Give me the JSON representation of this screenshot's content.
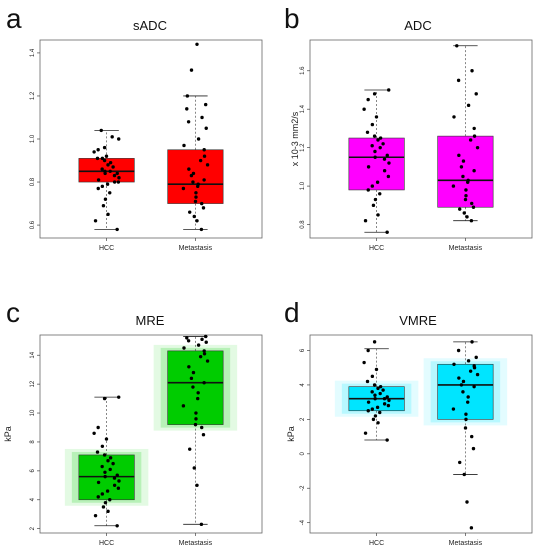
{
  "chart_data": [
    {
      "panel": "a",
      "type": "box",
      "title": "sADC",
      "ylabel": "",
      "categories": [
        "HCC",
        "Metastasis"
      ],
      "ylim": [
        0.54,
        1.46
      ],
      "yticks": [
        0.6,
        0.8,
        1.0,
        1.2,
        1.4
      ],
      "ytick_labels": [
        "0.6",
        "0.8",
        "1.0",
        "1.2",
        "1.4"
      ],
      "box_color": "#ff0000",
      "glow": false,
      "boxes": [
        {
          "name": "HCC",
          "min": 0.58,
          "q1": 0.8,
          "median": 0.85,
          "q3": 0.91,
          "max": 1.04,
          "points": [
            0.58,
            0.62,
            0.65,
            0.69,
            0.72,
            0.75,
            0.77,
            0.78,
            0.79,
            0.8,
            0.8,
            0.81,
            0.82,
            0.83,
            0.84,
            0.84,
            0.85,
            0.85,
            0.86,
            0.87,
            0.88,
            0.89,
            0.9,
            0.91,
            0.91,
            0.92,
            0.94,
            0.95,
            0.96,
            1.0,
            1.01,
            1.04
          ]
        },
        {
          "name": "Metastasis",
          "min": 0.58,
          "q1": 0.7,
          "median": 0.79,
          "q3": 0.95,
          "max": 1.2,
          "points": [
            0.58,
            0.62,
            0.64,
            0.66,
            0.68,
            0.7,
            0.71,
            0.73,
            0.75,
            0.77,
            0.78,
            0.79,
            0.8,
            0.81,
            0.83,
            0.84,
            0.86,
            0.88,
            0.9,
            0.92,
            0.95,
            0.97,
            1.0,
            1.05,
            1.08,
            1.1,
            1.14,
            1.16,
            1.2,
            1.32,
            1.44
          ]
        }
      ]
    },
    {
      "panel": "b",
      "type": "box",
      "title": "ADC",
      "ylabel": "x 10-3 mm2/s",
      "categories": [
        "HCC",
        "Metastasis"
      ],
      "ylim": [
        0.73,
        1.76
      ],
      "yticks": [
        0.8,
        1.0,
        1.2,
        1.4,
        1.6
      ],
      "ytick_labels": [
        "0.8",
        "1.0",
        "1.2",
        "1.4",
        "1.6"
      ],
      "box_color": "#ff00ff",
      "glow": false,
      "boxes": [
        {
          "name": "HCC",
          "min": 0.76,
          "q1": 0.98,
          "median": 1.15,
          "q3": 1.25,
          "max": 1.5,
          "points": [
            0.76,
            0.82,
            0.85,
            0.9,
            0.93,
            0.96,
            0.98,
            1.0,
            1.02,
            1.05,
            1.08,
            1.1,
            1.12,
            1.14,
            1.15,
            1.16,
            1.18,
            1.2,
            1.21,
            1.22,
            1.24,
            1.25,
            1.26,
            1.28,
            1.32,
            1.36,
            1.4,
            1.45,
            1.48,
            1.5
          ]
        },
        {
          "name": "Metastasis",
          "min": 0.82,
          "q1": 0.89,
          "median": 1.03,
          "q3": 1.26,
          "max": 1.73,
          "points": [
            0.82,
            0.84,
            0.86,
            0.88,
            0.89,
            0.91,
            0.93,
            0.95,
            0.98,
            1.0,
            1.02,
            1.03,
            1.05,
            1.08,
            1.1,
            1.13,
            1.16,
            1.2,
            1.24,
            1.26,
            1.3,
            1.36,
            1.42,
            1.48,
            1.55,
            1.6,
            1.73
          ]
        }
      ]
    },
    {
      "panel": "c",
      "type": "box",
      "title": "MRE",
      "ylabel": "kPa",
      "categories": [
        "HCC",
        "Metastasis"
      ],
      "ylim": [
        1.7,
        15.4
      ],
      "yticks": [
        2,
        4,
        6,
        8,
        10,
        12,
        14
      ],
      "ytick_labels": [
        "2",
        "4",
        "6",
        "8",
        "10",
        "12",
        "14"
      ],
      "box_color": "#00cc00",
      "glow": true,
      "boxes": [
        {
          "name": "HCC",
          "min": 2.2,
          "q1": 4.0,
          "median": 5.6,
          "q3": 7.1,
          "max": 11.1,
          "points": [
            2.2,
            2.9,
            3.2,
            3.5,
            3.8,
            4.0,
            4.2,
            4.4,
            4.6,
            4.8,
            5.0,
            5.2,
            5.3,
            5.5,
            5.6,
            5.7,
            5.9,
            6.1,
            6.3,
            6.5,
            6.7,
            6.9,
            7.1,
            7.3,
            7.7,
            8.2,
            8.6,
            9.0,
            11.0,
            11.1
          ]
        },
        {
          "name": "Metastasis",
          "min": 2.3,
          "q1": 9.2,
          "median": 12.1,
          "q3": 14.3,
          "max": 15.3,
          "points": [
            2.3,
            5.0,
            6.2,
            7.5,
            8.5,
            9.0,
            9.2,
            9.6,
            10.0,
            10.5,
            11.0,
            11.4,
            11.8,
            12.1,
            12.4,
            12.8,
            13.2,
            13.6,
            13.9,
            14.1,
            14.3,
            14.5,
            14.7,
            14.9,
            15.0,
            15.1,
            15.2,
            15.3
          ]
        }
      ]
    },
    {
      "panel": "d",
      "type": "box",
      "title": "VMRE",
      "ylabel": "kPa",
      "categories": [
        "HCC",
        "Metastasis"
      ],
      "ylim": [
        -4.6,
        6.9
      ],
      "yticks": [
        -4,
        -2,
        0,
        2,
        4,
        6
      ],
      "ytick_labels": [
        "-4",
        "-2",
        "0",
        "2",
        "4",
        "6"
      ],
      "box_color": "#00e5ff",
      "glow": true,
      "boxes": [
        {
          "name": "HCC",
          "min": 0.8,
          "q1": 2.5,
          "median": 3.2,
          "q3": 3.9,
          "max": 6.1,
          "points": [
            0.8,
            1.2,
            1.8,
            2.0,
            2.2,
            2.4,
            2.5,
            2.6,
            2.7,
            2.8,
            2.9,
            3.0,
            3.1,
            3.2,
            3.2,
            3.3,
            3.4,
            3.5,
            3.6,
            3.7,
            3.8,
            3.9,
            4.0,
            4.2,
            4.5,
            4.9,
            5.3,
            6.0,
            6.5
          ]
        },
        {
          "name": "Metastasis",
          "min": -1.2,
          "q1": 2.0,
          "median": 4.0,
          "q3": 5.2,
          "max": 6.5,
          "points": [
            -4.3,
            -2.8,
            -1.2,
            -0.5,
            0.3,
            1.0,
            1.5,
            2.0,
            2.3,
            2.6,
            3.0,
            3.3,
            3.6,
            3.9,
            4.0,
            4.2,
            4.4,
            4.6,
            4.8,
            5.0,
            5.1,
            5.2,
            5.4,
            5.6,
            6.0,
            6.5
          ]
        }
      ]
    }
  ]
}
